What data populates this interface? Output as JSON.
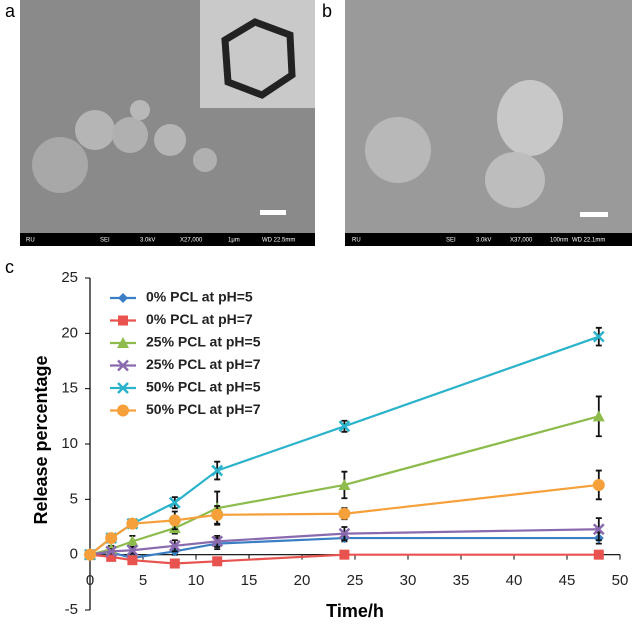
{
  "panels": [
    {
      "label": "a",
      "info": [
        "RU",
        "SEI",
        "3.0kV",
        "X27,000",
        "1μm",
        "WD 22.5mm"
      ]
    },
    {
      "label": "b",
      "info": [
        "RU",
        "SEI",
        "3.0kV",
        "X37,000",
        "100nm",
        "WD 22.1mm"
      ]
    }
  ],
  "chart_label": "c",
  "chart_data": {
    "type": "line",
    "x_label": "Time/h",
    "y_label": "Release percentage",
    "x": [
      0,
      2,
      4,
      8,
      12,
      24,
      48
    ],
    "series": [
      {
        "name": "0% PCL at pH=5",
        "color": "#3a7fc4",
        "marker": "diamond",
        "values": [
          0,
          0.2,
          -0.3,
          0.3,
          1.0,
          1.5,
          1.5
        ],
        "errors": [
          0,
          0.2,
          0.2,
          0.3,
          0.5,
          0.3,
          0.5
        ]
      },
      {
        "name": "0% PCL at pH=7",
        "color": "#e8534f",
        "marker": "square",
        "values": [
          0,
          -0.2,
          -0.5,
          -0.8,
          -0.6,
          0,
          0
        ],
        "errors": [
          0,
          0.2,
          0.2,
          0.2,
          0.2,
          0.2,
          0.2
        ]
      },
      {
        "name": "25% PCL at pH=5",
        "color": "#8dbb4c",
        "marker": "triangle",
        "values": [
          0,
          0.5,
          1.2,
          2.4,
          4.2,
          6.3,
          12.5
        ],
        "errors": [
          0,
          0.3,
          0.5,
          0.5,
          1.5,
          1.2,
          1.8
        ]
      },
      {
        "name": "25% PCL at pH=7",
        "color": "#8a6aae",
        "marker": "cross",
        "values": [
          0,
          0.3,
          0.4,
          0.8,
          1.2,
          1.9,
          2.3
        ],
        "errors": [
          0,
          0.2,
          0.3,
          0.5,
          0.5,
          0.6,
          1.0
        ]
      },
      {
        "name": "50% PCL at pH=5",
        "color": "#2bb3cc",
        "marker": "cross",
        "values": [
          0,
          1.5,
          2.8,
          4.7,
          7.6,
          11.6,
          19.7
        ],
        "errors": [
          0,
          0.3,
          0.3,
          0.5,
          0.8,
          0.5,
          0.8
        ]
      },
      {
        "name": "50% PCL at pH=7",
        "color": "#f5a03a",
        "marker": "circle",
        "values": [
          0,
          1.5,
          2.8,
          3.1,
          3.6,
          3.7,
          6.3
        ],
        "errors": [
          0,
          0.3,
          0.3,
          0.8,
          0.8,
          0.5,
          1.3
        ]
      }
    ],
    "xlim": [
      0,
      50
    ],
    "xticks": [
      0,
      5,
      10,
      15,
      20,
      25,
      30,
      35,
      40,
      45,
      50
    ],
    "ylim": [
      -5,
      25
    ],
    "yticks": [
      -5,
      0,
      5,
      10,
      15,
      20,
      25
    ],
    "legend": "upper-left"
  }
}
